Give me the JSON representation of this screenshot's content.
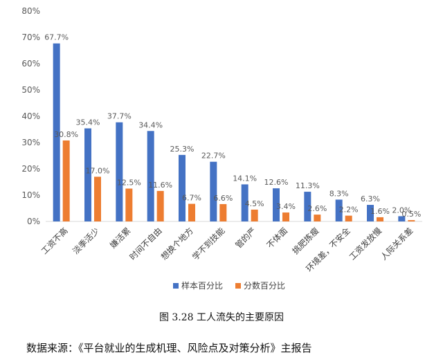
{
  "chart_data": {
    "type": "bar",
    "categories": [
      "工资不高",
      "淡季活少",
      "嫌活累",
      "时间不自由",
      "想换个地方",
      "学不到技能",
      "管的严",
      "不体面",
      "挑肥拣瘦",
      "环境差，不安全",
      "工资发放慢",
      "人际关系差"
    ],
    "series": [
      {
        "name": "样本百分比",
        "color": "#4472C4",
        "values": [
          67.7,
          35.4,
          37.7,
          34.4,
          25.3,
          22.7,
          14.1,
          12.6,
          11.3,
          8.3,
          6.3,
          2.0
        ],
        "labels": [
          "67.7%",
          "35.4%",
          "37.7%",
          "34.4%",
          "25.3%",
          "22.7%",
          "14.1%",
          "12.6%",
          "11.3%",
          "8.3%",
          "6.3%",
          "2.0%"
        ]
      },
      {
        "name": "分数百分比",
        "color": "#ED7D31",
        "values": [
          30.8,
          17.0,
          12.5,
          11.6,
          6.7,
          6.6,
          4.5,
          3.4,
          2.6,
          2.2,
          1.6,
          0.5
        ],
        "labels": [
          "30.8%",
          "17.0%",
          "12.5%",
          "11.6%",
          "6.7%",
          "6.6%",
          "4.5%",
          "3.4%",
          "2.6%",
          "2.2%",
          "1.6%",
          "0.5%"
        ]
      }
    ],
    "y_ticks": [
      "0%",
      "10%",
      "20%",
      "30%",
      "40%",
      "50%",
      "60%",
      "70%",
      "80%"
    ],
    "ylim": [
      0,
      80
    ],
    "grid": false,
    "legend_position": "bottom"
  },
  "caption": "图 3.28 工人流失的主要原因",
  "source": "数据来源：《平台就业的生成机理、风险点及对策分析》主报告"
}
